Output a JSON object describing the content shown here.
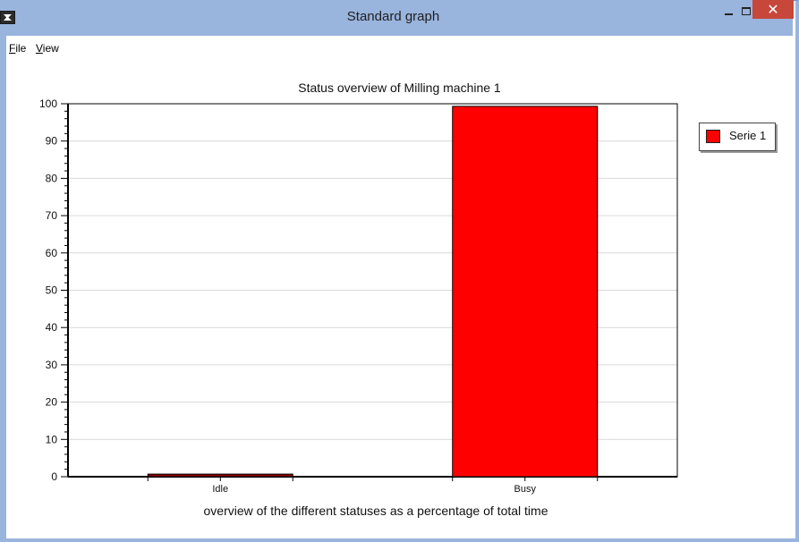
{
  "window": {
    "title": "Standard graph",
    "close_glyph": "✕"
  },
  "menu": {
    "file_accel": "F",
    "file_rest": "ile",
    "view_accel": "V",
    "view_rest": "iew"
  },
  "chart_data": {
    "type": "bar",
    "title": "Status overview of Milling machine 1",
    "xlabel": "overview of the different statuses as a percentage of total time",
    "ylabel": "",
    "categories": [
      "Idle",
      "Busy"
    ],
    "series": [
      {
        "name": "Serie 1",
        "values": [
          0.7,
          99.3
        ]
      }
    ],
    "ylim": [
      0,
      100
    ],
    "yticks": [
      0,
      10,
      20,
      30,
      40,
      50,
      60,
      70,
      80,
      90,
      100
    ],
    "bar_colors": [
      "#8b0000",
      "#ff0000"
    ],
    "grid": true,
    "legend": "right"
  },
  "legend": {
    "label": "Serie 1",
    "color": "#ff0000"
  }
}
